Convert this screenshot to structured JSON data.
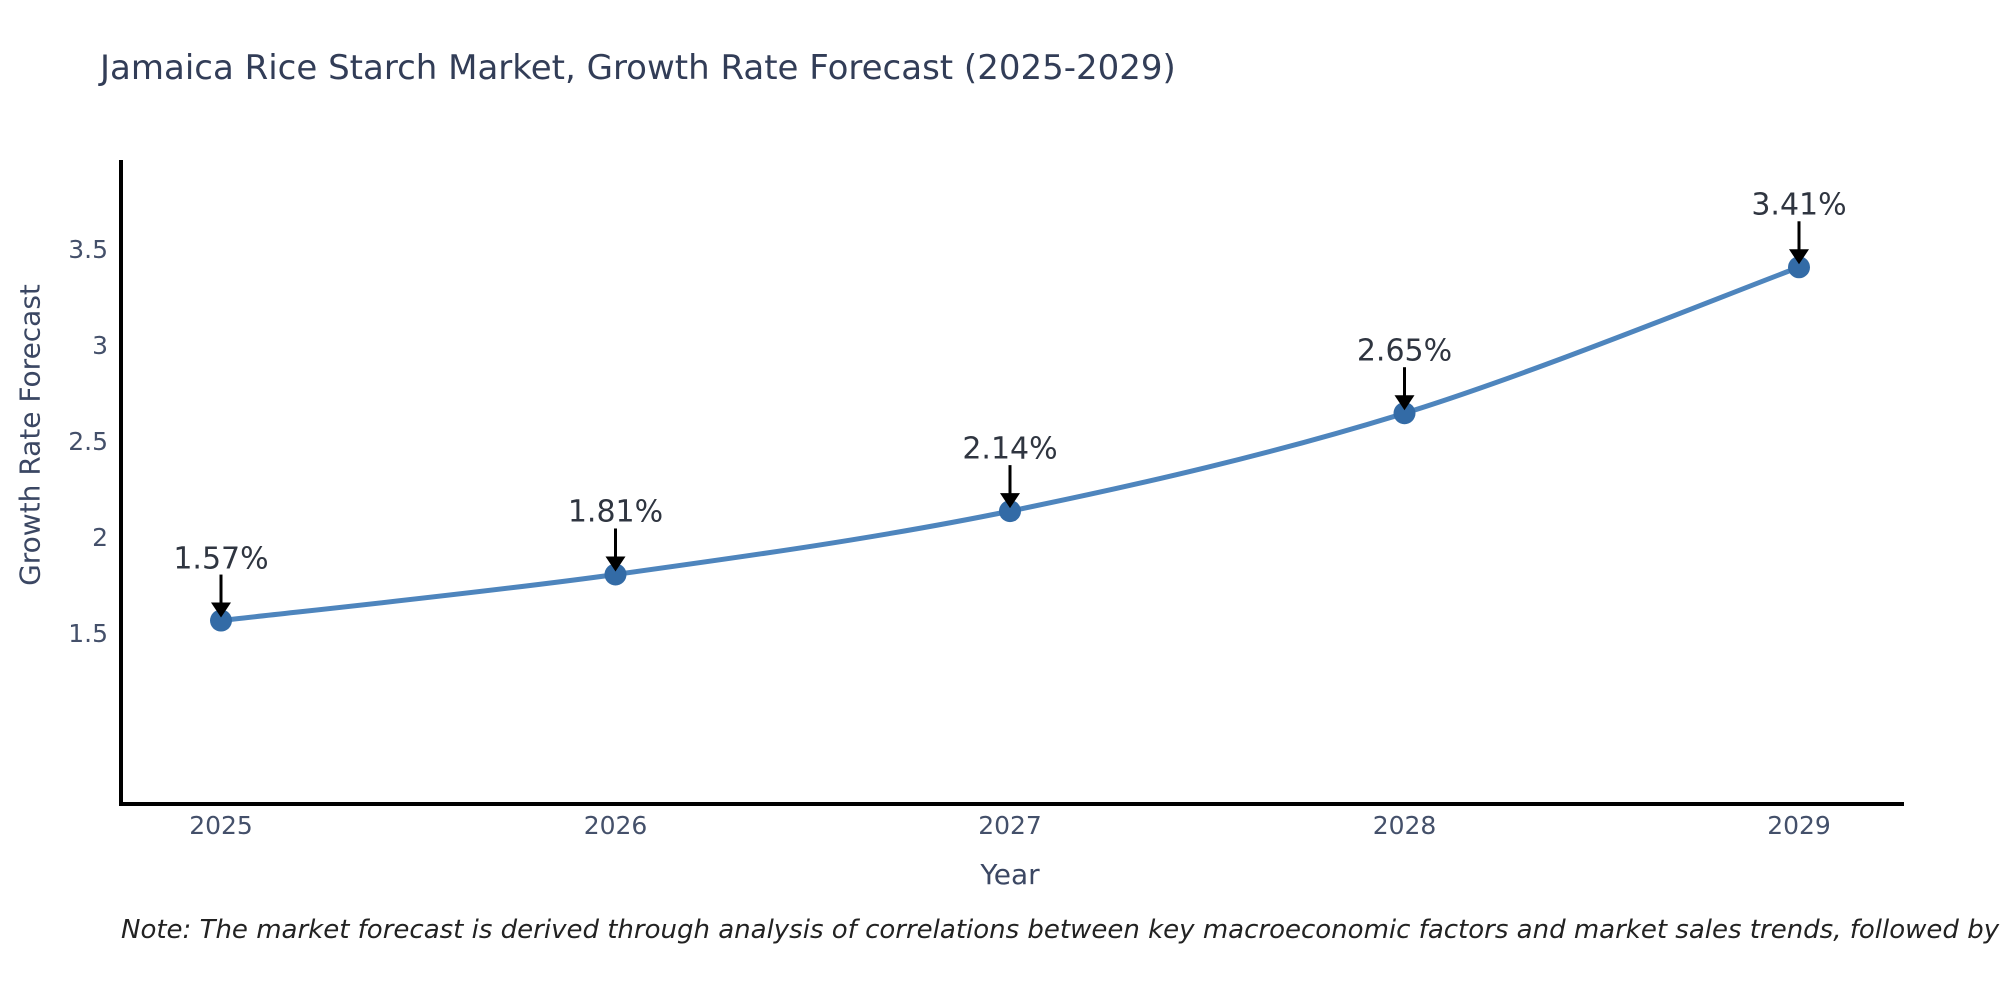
{
  "title": "Jamaica Rice Starch Market, Growth Rate Forecast (2025-2029)",
  "note": "Note: The market forecast is derived through analysis of correlations between key macroeconomic factors and market sales trends, followed by predictive modeling to project future sales",
  "chart_data": {
    "type": "line",
    "title": "Jamaica Rice Starch Market, Growth Rate Forecast (2025-2029)",
    "xlabel": "Year",
    "ylabel": "Growth Rate Forecast",
    "x": [
      2025,
      2026,
      2027,
      2028,
      2029
    ],
    "values": [
      1.57,
      1.81,
      2.14,
      2.65,
      3.41
    ],
    "point_labels": [
      "1.57%",
      "1.81%",
      "2.14%",
      "2.65%",
      "3.41%"
    ],
    "yticks": [
      1.5,
      2.0,
      2.5,
      3.0,
      3.5
    ],
    "ytick_labels": [
      "1.5",
      "2",
      "2.5",
      "3",
      "3.5"
    ],
    "xtick_labels": [
      "2025",
      "2026",
      "2027",
      "2028",
      "2029"
    ],
    "ylim": [
      0.63,
      3.97
    ],
    "grid": false,
    "legend": "none",
    "line_shape": "smooth",
    "annotation_style": "value label with downward arrow to each point"
  },
  "colors": {
    "background": "#ffffff",
    "line": "#4e85bd",
    "marker": "#336ba6",
    "arrow": "#000000",
    "axis_spine": "#000000",
    "title_text": "#323d57",
    "tick_text": "#44506a",
    "axis_title_text": "#3b4763",
    "annotation_text": "#2f3540",
    "note_text": "#222222"
  }
}
